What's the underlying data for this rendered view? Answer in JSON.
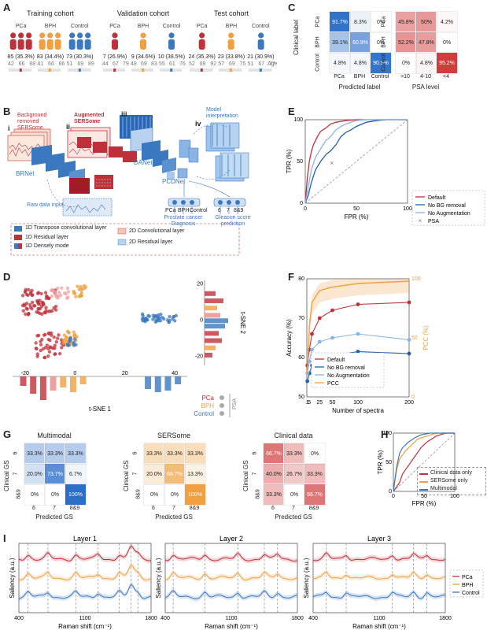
{
  "colors": {
    "pca": "#c0303a",
    "bph": "#f0a040",
    "control": "#3a78c0",
    "blue_dark": "#2060b0",
    "grey": "#999999"
  },
  "panelA": {
    "letter": "A",
    "cohorts": [
      {
        "title": "Training cohort",
        "groups": [
          {
            "label": "PCa",
            "count": "85 (35.3%)",
            "ages": [
              "42",
              "66",
              "88"
            ]
          },
          {
            "label": "BPH",
            "count": "83 (34.4%)",
            "ages": [
              "41",
              "66",
              "86"
            ]
          },
          {
            "label": "Control",
            "count": "73 (30.3%)",
            "ages": [
              "51",
              "69",
              "89"
            ]
          }
        ]
      },
      {
        "title": "Validation cohort",
        "groups": [
          {
            "label": "PCa",
            "count": "7 (26.9%)",
            "ages": [
              "44",
              "67",
              "79"
            ]
          },
          {
            "label": "BPH",
            "count": "9 (34.6%)",
            "ages": [
              "48",
              "69",
              "83"
            ]
          },
          {
            "label": "Control",
            "count": "10 (38.5%)",
            "ages": [
              "55",
              "61",
              "76"
            ]
          }
        ]
      },
      {
        "title": "Test cohort",
        "groups": [
          {
            "label": "PCa",
            "count": "24 (35.3%)",
            "ages": [
              "52",
              "69",
              "92"
            ]
          },
          {
            "label": "BPH",
            "count": "23 (33.8%)",
            "ages": [
              "57",
              "69",
              "75"
            ]
          },
          {
            "label": "Control",
            "count": "21 (30.9%)",
            "ages": [
              "51",
              "67",
              "77"
            ]
          }
        ]
      }
    ],
    "age_label": "Age"
  },
  "panelB": {
    "letter": "B",
    "labels": {
      "bg": "Background removed SERSome",
      "aug": "Augmented SERSome",
      "interp": "Model interpretation",
      "i": "i",
      "ii": "ii",
      "iii": "iii",
      "iv": "iv",
      "brnet": "BRNet",
      "danet": "DANet",
      "pcdnet": "PCDNet",
      "raw": "Raw data input",
      "diag": "Prostate cancer Diagnosis",
      "gleason": "Gleason score prediction",
      "pca": "PCa",
      "bph": "BPH",
      "control": "Control",
      "g6": "6",
      "g7": "7",
      "g89": "8&9"
    },
    "legend": [
      "1D Transpose convolutional layer",
      "1D Residual layer",
      "1D Densely mode",
      "2D Convolutional layer",
      "2D Residual layer"
    ]
  },
  "panelC": {
    "letter": "C",
    "left": {
      "ylabel": "Clinical label",
      "xlabel": "Predicted label",
      "rows": [
        "PCa",
        "BPH",
        "Control"
      ],
      "cols": [
        "PCa",
        "BPH",
        "Control"
      ],
      "cells": [
        [
          "91.7%",
          "8.3%",
          "0%"
        ],
        [
          "39.1%",
          "60.9%",
          "0%"
        ],
        [
          "4.8%",
          "4.8%",
          "90.5%"
        ]
      ]
    },
    "right": {
      "xlabel": "PSA level",
      "cols": [
        ">10",
        "4-10",
        "<4"
      ],
      "cells": [
        [
          "45.8%",
          "50%",
          "4.2%"
        ],
        [
          "52.2%",
          "47.8%",
          "0%"
        ],
        [
          "0%",
          "4.8%",
          "95.2%"
        ]
      ]
    }
  },
  "panelD": {
    "letter": "D",
    "xlabel": "t-SNE 1",
    "ylabel": "t-SNE 2",
    "xticks": [
      "-20",
      "0",
      "20",
      "40"
    ],
    "yticks": [
      "20",
      "0",
      "-20"
    ],
    "legend": [
      "PCa",
      "BPH",
      "Control"
    ],
    "psa": "PSA"
  },
  "panelE": {
    "letter": "E",
    "chart_data": {
      "type": "line",
      "title": "",
      "xlabel": "FPR (%)",
      "ylabel": "TPR (%)",
      "xlim": [
        0,
        100
      ],
      "ylim": [
        0,
        100
      ],
      "xticks": [
        "0",
        "50",
        "100"
      ],
      "yticks": [
        "0",
        "50",
        "100"
      ],
      "series": [
        {
          "name": "Default",
          "x": [
            0,
            2,
            4,
            6,
            8,
            12,
            15,
            20,
            25,
            30,
            35,
            40,
            50,
            60,
            70,
            100
          ],
          "y": [
            0,
            30,
            50,
            62,
            70,
            80,
            86,
            90,
            95,
            97,
            98,
            99,
            100,
            100,
            100,
            100
          ]
        },
        {
          "name": "No BG removal",
          "x": [
            0,
            3,
            6,
            10,
            15,
            20,
            25,
            30,
            35,
            40,
            45,
            50,
            60,
            70,
            80,
            100
          ],
          "y": [
            0,
            10,
            25,
            40,
            50,
            58,
            63,
            70,
            80,
            85,
            88,
            92,
            97,
            99,
            100,
            100
          ]
        },
        {
          "name": "No Augmentation",
          "x": [
            0,
            3,
            6,
            10,
            15,
            20,
            25,
            30,
            35,
            40,
            45,
            50,
            60,
            70,
            80,
            100
          ],
          "y": [
            0,
            20,
            40,
            55,
            65,
            75,
            80,
            88,
            92,
            95,
            97,
            99,
            100,
            100,
            100,
            100
          ]
        }
      ],
      "psa_point": {
        "name": "PSA",
        "x": 26,
        "y": 48
      }
    }
  },
  "panelF": {
    "letter": "F",
    "chart_data": {
      "type": "line",
      "xlabel": "Number of spectra",
      "ylabel": "Accuracy (%)",
      "ylabel2": "PCC (%)",
      "x": [
        1,
        5,
        10,
        25,
        50,
        100,
        200
      ],
      "ylim": [
        50,
        80
      ],
      "ylim2": [
        0,
        100
      ],
      "xticks": [
        "1",
        "5",
        "25",
        "50",
        "100",
        "200"
      ],
      "yticks": [
        "50",
        "60",
        "70",
        "80"
      ],
      "yticks2": [
        "0",
        "50",
        "100"
      ],
      "series": [
        {
          "name": "Default",
          "values": [
            58,
            62,
            66,
            70,
            72,
            73.5,
            74
          ]
        },
        {
          "name": "No BG removal",
          "values": [
            54,
            56,
            58,
            59.5,
            60.5,
            61.5,
            61
          ]
        },
        {
          "name": "No Augmentation",
          "values": [
            56,
            59,
            62,
            64,
            65,
            66,
            64.5
          ]
        },
        {
          "name": "PCC",
          "axis": "right",
          "values": [
            20,
            60,
            80,
            90,
            93,
            96,
            98
          ]
        }
      ]
    }
  },
  "panelG": {
    "letter": "G",
    "matrices": [
      {
        "title": "Multimodal",
        "cells": [
          [
            "33.3%",
            "33.3%",
            "33.3%"
          ],
          [
            "20.0%",
            "73.7%",
            "6.7%"
          ],
          [
            "0%",
            "0%",
            "100%"
          ]
        ]
      },
      {
        "title": "SERSome",
        "cells": [
          [
            "33.3%",
            "33.3%",
            "33.3%"
          ],
          [
            "20.0%",
            "66.7%",
            "13.3%"
          ],
          [
            "0%",
            "0%",
            "100%"
          ]
        ]
      },
      {
        "title": "Clinical data",
        "cells": [
          [
            "66.7%",
            "33.3%",
            "0%"
          ],
          [
            "40.0%",
            "26.7%",
            "33.3%"
          ],
          [
            "33.3%",
            "0%",
            "66.7%"
          ]
        ]
      }
    ],
    "ylabel": "Clinical GS",
    "xlabel": "Predicted GS",
    "classes": [
      "6",
      "7",
      "8&9"
    ]
  },
  "panelH": {
    "letter": "H",
    "chart_data": {
      "type": "line",
      "xlabel": "FPR (%)",
      "ylabel": "TPR (%)",
      "xticks": [
        "0",
        "50",
        "100"
      ],
      "yticks": [
        "0",
        "50",
        "100"
      ],
      "series": [
        {
          "name": "Clinical data only",
          "x": [
            0,
            10,
            15,
            25,
            35,
            45,
            55,
            70,
            85,
            100
          ],
          "y": [
            0,
            15,
            30,
            45,
            60,
            75,
            85,
            95,
            100,
            100
          ]
        },
        {
          "name": "SERSome only",
          "x": [
            0,
            5,
            10,
            20,
            30,
            40,
            55,
            70,
            100
          ],
          "y": [
            0,
            35,
            55,
            70,
            80,
            90,
            95,
            100,
            100
          ]
        },
        {
          "name": "Multimodal",
          "x": [
            0,
            5,
            10,
            15,
            25,
            35,
            45,
            60,
            100
          ],
          "y": [
            0,
            40,
            65,
            75,
            85,
            92,
            97,
            100,
            100
          ]
        }
      ]
    }
  },
  "panelI": {
    "letter": "I",
    "layers": [
      "Layer 1",
      "Layer 2",
      "Layer 3"
    ],
    "xlabel": "Raman shift (cm⁻¹)",
    "ylabel": "Saliency (a.u.)",
    "xticks": [
      "400",
      "1100",
      "1800"
    ],
    "legend": [
      "PCa",
      "BPH",
      "Control"
    ]
  }
}
